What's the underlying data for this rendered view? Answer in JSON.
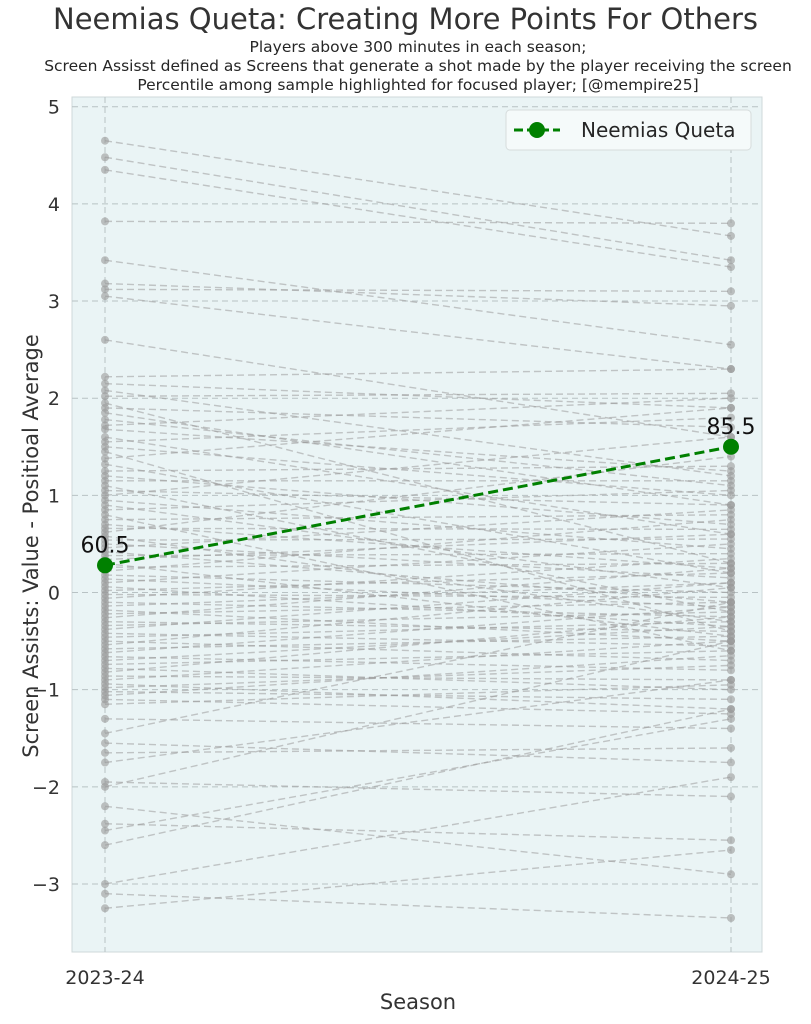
{
  "chart_data": {
    "type": "line",
    "title": "Neemias Queta: Creating More Points For Others",
    "subtitle_lines": [
      "Players above 300 minutes in each season;",
      "Screen Assisst defined as Screens that generate a shot made by the player receiving the screen",
      "Percentile among sample highlighted for focused player; [@mempire25]"
    ],
    "xlabel": "Season",
    "ylabel": "Screen Assists: Value - Positioal Average",
    "categories": [
      "2023-24",
      "2024-25"
    ],
    "ylim": [
      -3.7,
      5.1
    ],
    "yticks": [
      -3,
      -2,
      -1,
      0,
      1,
      2,
      3,
      4,
      5
    ],
    "grid": true,
    "legend": {
      "position": "top-right",
      "entries": [
        "Neemias Queta"
      ]
    },
    "highlight": {
      "name": "Neemias Queta",
      "values": [
        0.28,
        1.5
      ],
      "labels": [
        "60.5",
        "85.5"
      ],
      "color": "#008000"
    },
    "background_series_color": "#9a9a9a",
    "background_series": [
      [
        4.65,
        3.67
      ],
      [
        4.48,
        3.42
      ],
      [
        4.35,
        3.35
      ],
      [
        3.82,
        3.8
      ],
      [
        3.42,
        2.55
      ],
      [
        3.18,
        2.95
      ],
      [
        3.12,
        3.1
      ],
      [
        3.05,
        2.3
      ],
      [
        2.6,
        1.6
      ],
      [
        2.22,
        2.3
      ],
      [
        2.15,
        1.9
      ],
      [
        2.08,
        1.2
      ],
      [
        2.02,
        2.05
      ],
      [
        1.95,
        0.3
      ],
      [
        1.9,
        1.7
      ],
      [
        1.85,
        0.9
      ],
      [
        1.78,
        1.1
      ],
      [
        1.72,
        2.0
      ],
      [
        1.68,
        1.25
      ],
      [
        1.6,
        0.6
      ],
      [
        1.55,
        1.8
      ],
      [
        1.5,
        1.0
      ],
      [
        1.45,
        -0.4
      ],
      [
        1.38,
        1.9
      ],
      [
        1.32,
        0.2
      ],
      [
        1.25,
        1.3
      ],
      [
        1.2,
        0.7
      ],
      [
        1.15,
        1.15
      ],
      [
        1.1,
        -0.2
      ],
      [
        1.05,
        0.9
      ],
      [
        1.0,
        1.6
      ],
      [
        0.95,
        0.45
      ],
      [
        0.9,
        0.05
      ],
      [
        0.85,
        1.05
      ],
      [
        0.8,
        -0.6
      ],
      [
        0.75,
        0.8
      ],
      [
        0.7,
        0.25
      ],
      [
        0.66,
        0.65
      ],
      [
        0.62,
        1.4
      ],
      [
        0.58,
        -0.3
      ],
      [
        0.54,
        0.55
      ],
      [
        0.5,
        0.15
      ],
      [
        0.46,
        0.85
      ],
      [
        0.42,
        -0.1
      ],
      [
        0.38,
        0.4
      ],
      [
        0.34,
        0.6
      ],
      [
        0.3,
        -0.45
      ],
      [
        0.26,
        0.3
      ],
      [
        0.22,
        0.75
      ],
      [
        0.18,
        0.0
      ],
      [
        0.14,
        -0.15
      ],
      [
        0.1,
        0.5
      ],
      [
        0.06,
        -0.35
      ],
      [
        0.02,
        0.2
      ],
      [
        -0.02,
        -0.05
      ],
      [
        -0.06,
        0.35
      ],
      [
        -0.1,
        -0.25
      ],
      [
        -0.14,
        0.1
      ],
      [
        -0.18,
        -0.5
      ],
      [
        -0.22,
        -0.1
      ],
      [
        -0.26,
        0.25
      ],
      [
        -0.3,
        -0.4
      ],
      [
        -0.34,
        -0.2
      ],
      [
        -0.38,
        0.1
      ],
      [
        -0.42,
        -0.55
      ],
      [
        -0.46,
        -0.3
      ],
      [
        -0.5,
        -0.7
      ],
      [
        -0.54,
        0.05
      ],
      [
        -0.58,
        -0.45
      ],
      [
        -0.62,
        -0.15
      ],
      [
        -0.66,
        -0.8
      ],
      [
        -0.7,
        -0.35
      ],
      [
        -0.74,
        -0.6
      ],
      [
        -0.78,
        -1.0
      ],
      [
        -0.82,
        -0.25
      ],
      [
        -0.86,
        -0.9
      ],
      [
        -0.9,
        -0.5
      ],
      [
        -0.94,
        -1.2
      ],
      [
        -0.98,
        -0.75
      ],
      [
        -1.02,
        -1.1
      ],
      [
        -1.06,
        -0.65
      ],
      [
        -1.1,
        -1.25
      ],
      [
        -1.15,
        -0.95
      ],
      [
        -1.3,
        -1.4
      ],
      [
        -1.45,
        -0.1
      ],
      [
        -1.55,
        -1.75
      ],
      [
        -1.65,
        -1.6
      ],
      [
        -1.75,
        -0.9
      ],
      [
        -1.95,
        -2.1
      ],
      [
        -2.0,
        -0.5
      ],
      [
        -2.2,
        -2.9
      ],
      [
        -2.38,
        -2.55
      ],
      [
        -2.45,
        -1.3
      ],
      [
        -2.6,
        -1.2
      ],
      [
        -3.0,
        -1.9
      ],
      [
        -3.1,
        -3.35
      ],
      [
        -3.25,
        -2.65
      ]
    ]
  }
}
